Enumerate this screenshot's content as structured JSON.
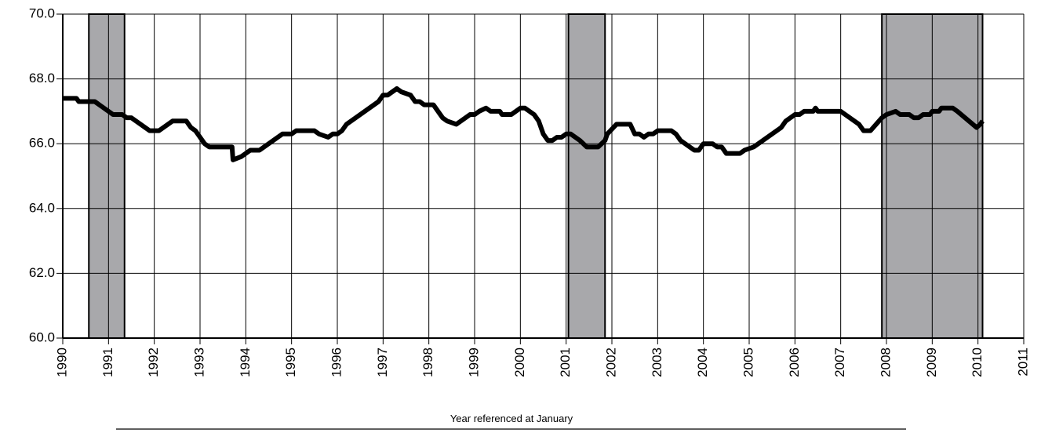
{
  "chart_data": {
    "type": "line",
    "xlabel": "Year referenced at January",
    "x": [
      1990.0,
      1990.3,
      1990.35,
      1990.7,
      1991.0,
      1991.1,
      1991.3,
      1991.4,
      1991.5,
      1991.8,
      1991.9,
      1992.1,
      1992.3,
      1992.4,
      1992.7,
      1992.8,
      1992.9,
      1993.1,
      1993.2,
      1993.5,
      1993.7,
      1993.72,
      1993.9,
      1994.1,
      1994.3,
      1994.5,
      1994.8,
      1995.0,
      1995.1,
      1995.5,
      1995.6,
      1995.8,
      1995.9,
      1996.0,
      1996.1,
      1996.2,
      1996.5,
      1996.9,
      1997.0,
      1997.1,
      1997.2,
      1997.3,
      1997.4,
      1997.6,
      1997.7,
      1997.8,
      1997.9,
      1998.1,
      1998.2,
      1998.3,
      1998.4,
      1998.6,
      1998.7,
      1998.9,
      1999.0,
      1999.1,
      1999.25,
      1999.35,
      1999.55,
      1999.6,
      1999.8,
      1999.9,
      2000.0,
      2000.1,
      2000.3,
      2000.4,
      2000.5,
      2000.6,
      2000.7,
      2000.8,
      2000.9,
      2001.0,
      2001.1,
      2001.3,
      2001.45,
      2001.7,
      2001.85,
      2001.9,
      2002.1,
      2002.4,
      2002.5,
      2002.6,
      2002.7,
      2002.8,
      2002.9,
      2003.0,
      2003.3,
      2003.4,
      2003.5,
      2003.8,
      2003.9,
      2004.0,
      2004.2,
      2004.3,
      2004.4,
      2004.5,
      2004.8,
      2004.9,
      2005.1,
      2005.2,
      2005.4,
      2005.6,
      2005.7,
      2005.8,
      2006.0,
      2006.1,
      2006.2,
      2006.4,
      2006.45,
      2006.5,
      2007.0,
      2007.1,
      2007.4,
      2007.5,
      2007.65,
      2007.9,
      2008.0,
      2008.2,
      2008.3,
      2008.5,
      2008.6,
      2008.7,
      2008.8,
      2008.95,
      2009.0,
      2009.15,
      2009.2,
      2009.45,
      2009.55,
      2009.97,
      2010.05,
      2010.1
    ],
    "values": [
      67.4,
      67.4,
      67.3,
      67.3,
      67.0,
      66.9,
      66.9,
      66.8,
      66.8,
      66.5,
      66.4,
      66.4,
      66.6,
      66.7,
      66.7,
      66.5,
      66.4,
      66.0,
      65.9,
      65.9,
      65.9,
      65.5,
      65.6,
      65.8,
      65.8,
      66.0,
      66.3,
      66.3,
      66.4,
      66.4,
      66.3,
      66.2,
      66.3,
      66.3,
      66.4,
      66.6,
      66.9,
      67.3,
      67.5,
      67.5,
      67.6,
      67.7,
      67.6,
      67.5,
      67.3,
      67.3,
      67.2,
      67.2,
      67.0,
      66.8,
      66.7,
      66.6,
      66.7,
      66.9,
      66.9,
      67.0,
      67.1,
      67.0,
      67.0,
      66.9,
      66.9,
      67.0,
      67.1,
      67.1,
      66.9,
      66.7,
      66.3,
      66.1,
      66.1,
      66.2,
      66.2,
      66.3,
      66.3,
      66.1,
      65.9,
      65.9,
      66.1,
      66.3,
      66.6,
      66.6,
      66.3,
      66.3,
      66.2,
      66.3,
      66.3,
      66.4,
      66.4,
      66.3,
      66.1,
      65.8,
      65.8,
      66.0,
      66.0,
      65.9,
      65.9,
      65.7,
      65.7,
      65.8,
      65.9,
      66.0,
      66.2,
      66.4,
      66.5,
      66.7,
      66.9,
      66.9,
      67.0,
      67.0,
      67.1,
      67.0,
      67.0,
      66.9,
      66.6,
      66.4,
      66.4,
      66.8,
      66.9,
      67.0,
      66.9,
      66.9,
      66.8,
      66.8,
      66.9,
      66.9,
      67.0,
      67.0,
      67.1,
      67.1,
      67.0,
      66.5,
      66.6,
      66.7
    ],
    "color": "#000000",
    "shaded_regions": [
      {
        "start": 1990.57,
        "end": 1991.35
      },
      {
        "start": 2001.05,
        "end": 2001.85
      },
      {
        "start": 2007.9,
        "end": 2010.1
      }
    ],
    "shade_color": "#a8a8ab",
    "xlim": [
      1990,
      2011
    ],
    "xticks": [
      1990,
      1991,
      1992,
      1993,
      1994,
      1995,
      1996,
      1997,
      1998,
      1999,
      2000,
      2001,
      2002,
      2003,
      2004,
      2005,
      2006,
      2007,
      2008,
      2009,
      2010,
      2011
    ],
    "ylim": [
      60,
      70
    ],
    "yticks": [
      {
        "value": 60,
        "label": "60.0"
      },
      {
        "value": 62,
        "label": "62.0"
      },
      {
        "value": 64,
        "label": "64.0"
      },
      {
        "value": 66,
        "label": "66.0"
      },
      {
        "value": 68,
        "label": "68.0"
      },
      {
        "value": 70,
        "label": "70.0"
      }
    ],
    "grid": true
  }
}
